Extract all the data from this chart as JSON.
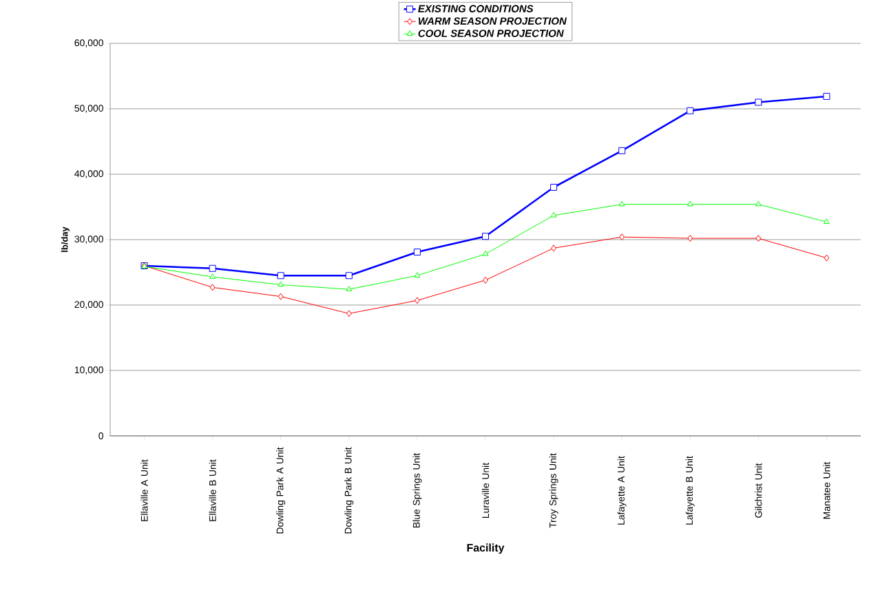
{
  "chart_data": {
    "type": "line",
    "xlabel": "Facility",
    "ylabel": "lb/day",
    "categories": [
      "Ellaville A Unit",
      "Ellaville B Unit",
      "Dowling Park A Unit",
      "Dowling Park B Unit",
      "Blue Springs Unit",
      "Luraville Unit",
      "Troy Springs Unit",
      "Lafayette A Unit",
      "Lafayette B Unit",
      "Gilchrist Unit",
      "Manatee Unit"
    ],
    "series": [
      {
        "name": "EXISTING CONDITIONS",
        "color": "#0000ff",
        "marker": "square",
        "values": [
          26000,
          25600,
          24500,
          24500,
          28100,
          30500,
          38000,
          43600,
          49700,
          51000,
          51900
        ]
      },
      {
        "name": "WARM SEASON PROJECTION",
        "color": "#ff0000",
        "marker": "diamond",
        "values": [
          26000,
          22700,
          21300,
          18700,
          20700,
          23800,
          28700,
          30400,
          30200,
          30200,
          27200
        ]
      },
      {
        "name": "COOL SEASON PROJECTION",
        "color": "#00ff00",
        "marker": "triangle",
        "values": [
          25900,
          24300,
          23100,
          22400,
          24500,
          27800,
          33700,
          35400,
          35400,
          35400,
          32700
        ]
      }
    ],
    "ylim": [
      0,
      60000
    ],
    "yticks": [
      0,
      {
        "value": 10000,
        "label": "10,000"
      },
      {
        "value": 20000,
        "label": "20,000"
      },
      {
        "value": 30000,
        "label": "30,000"
      },
      {
        "value": 40000,
        "label": "40,000"
      },
      {
        "value": 50000,
        "label": "50,000"
      },
      {
        "value": 60000,
        "label": "60,000"
      }
    ],
    "grid": "y",
    "legend": "top",
    "line_style": "solid"
  }
}
